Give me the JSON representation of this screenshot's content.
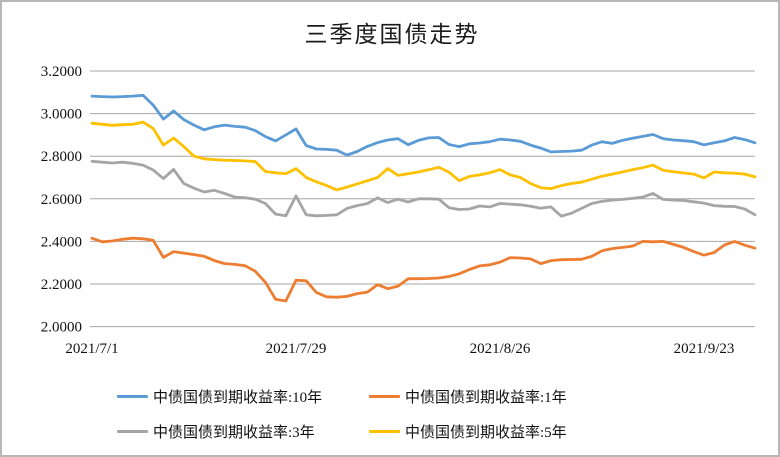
{
  "title": "三季度国债走势",
  "chart_data": {
    "type": "line",
    "title": "三季度国债走势",
    "xlabel": "",
    "ylabel": "",
    "ylim": [
      2.0,
      3.2
    ],
    "y_tick_step": 0.2,
    "y_ticks": [
      3.2,
      3.0,
      2.8,
      2.6,
      2.4,
      2.2,
      2.0
    ],
    "y_tick_labels": [
      "3.2000",
      "3.0000",
      "2.8000",
      "2.6000",
      "2.4000",
      "2.2000",
      "2.0000"
    ],
    "x_tick_labels": [
      "2021/7/1",
      "2021/7/29",
      "2021/8/26",
      "2021/9/23"
    ],
    "x_tick_indices": [
      0,
      20,
      40,
      60
    ],
    "num_points": 66,
    "grid": true,
    "legend_position": "bottom",
    "series": [
      {
        "name": "中债国债到期收益率:10年",
        "color": "#5B9BD5",
        "values": [
          3.082,
          3.08,
          3.078,
          3.08,
          3.082,
          3.086,
          3.04,
          2.974,
          3.012,
          2.972,
          2.946,
          2.924,
          2.938,
          2.946,
          2.94,
          2.936,
          2.92,
          2.892,
          2.872,
          2.9,
          2.928,
          2.85,
          2.834,
          2.832,
          2.828,
          2.805,
          2.822,
          2.846,
          2.864,
          2.876,
          2.882,
          2.854,
          2.874,
          2.886,
          2.888,
          2.855,
          2.845,
          2.858,
          2.862,
          2.868,
          2.88,
          2.876,
          2.87,
          2.852,
          2.838,
          2.82,
          2.822,
          2.824,
          2.828,
          2.852,
          2.868,
          2.86,
          2.874,
          2.884,
          2.893,
          2.902,
          2.882,
          2.876,
          2.873,
          2.868,
          2.853,
          2.863,
          2.872,
          2.888,
          2.878,
          2.863
        ]
      },
      {
        "name": "中债国债到期收益率:1年",
        "color": "#ED7D31",
        "values": [
          2.415,
          2.398,
          2.402,
          2.41,
          2.415,
          2.412,
          2.405,
          2.325,
          2.352,
          2.345,
          2.338,
          2.33,
          2.31,
          2.296,
          2.292,
          2.286,
          2.26,
          2.208,
          2.128,
          2.12,
          2.218,
          2.215,
          2.16,
          2.14,
          2.138,
          2.142,
          2.155,
          2.162,
          2.197,
          2.178,
          2.19,
          2.225,
          2.225,
          2.226,
          2.228,
          2.235,
          2.248,
          2.268,
          2.285,
          2.29,
          2.303,
          2.324,
          2.322,
          2.318,
          2.296,
          2.31,
          2.314,
          2.315,
          2.316,
          2.33,
          2.356,
          2.366,
          2.372,
          2.378,
          2.4,
          2.398,
          2.4,
          2.386,
          2.372,
          2.352,
          2.335,
          2.348,
          2.383,
          2.4,
          2.382,
          2.368
        ]
      },
      {
        "name": "中债国债到期收益率:3年",
        "color": "#A5A5A5",
        "values": [
          2.776,
          2.772,
          2.768,
          2.772,
          2.766,
          2.758,
          2.735,
          2.695,
          2.738,
          2.672,
          2.65,
          2.632,
          2.64,
          2.625,
          2.608,
          2.605,
          2.598,
          2.578,
          2.528,
          2.52,
          2.613,
          2.525,
          2.52,
          2.522,
          2.525,
          2.555,
          2.568,
          2.578,
          2.604,
          2.582,
          2.598,
          2.585,
          2.6,
          2.6,
          2.598,
          2.558,
          2.55,
          2.552,
          2.566,
          2.562,
          2.578,
          2.575,
          2.572,
          2.565,
          2.556,
          2.562,
          2.519,
          2.532,
          2.555,
          2.578,
          2.588,
          2.594,
          2.597,
          2.602,
          2.608,
          2.625,
          2.597,
          2.594,
          2.592,
          2.586,
          2.58,
          2.568,
          2.565,
          2.564,
          2.552,
          2.525
        ]
      },
      {
        "name": "中债国债到期收益率:5年",
        "color": "#FFC000",
        "values": [
          2.955,
          2.95,
          2.945,
          2.948,
          2.95,
          2.96,
          2.93,
          2.852,
          2.885,
          2.845,
          2.8,
          2.788,
          2.784,
          2.781,
          2.78,
          2.778,
          2.775,
          2.728,
          2.722,
          2.718,
          2.742,
          2.7,
          2.68,
          2.662,
          2.642,
          2.655,
          2.67,
          2.685,
          2.7,
          2.742,
          2.71,
          2.718,
          2.726,
          2.736,
          2.748,
          2.725,
          2.685,
          2.705,
          2.712,
          2.722,
          2.737,
          2.712,
          2.7,
          2.672,
          2.652,
          2.648,
          2.662,
          2.672,
          2.678,
          2.692,
          2.706,
          2.716,
          2.726,
          2.737,
          2.746,
          2.758,
          2.734,
          2.727,
          2.721,
          2.716,
          2.698,
          2.726,
          2.722,
          2.72,
          2.716,
          2.703
        ]
      }
    ]
  },
  "legend": [
    {
      "label": "中债国债到期收益率:10年",
      "color": "#5B9BD5"
    },
    {
      "label": "中债国债到期收益率:1年",
      "color": "#ED7D31"
    },
    {
      "label": "中债国债到期收益率:3年",
      "color": "#A5A5A5"
    },
    {
      "label": "中债国债到期收益率:5年",
      "color": "#FFC000"
    }
  ],
  "colors": {
    "gridline": "#a6a6a6",
    "text": "#111111",
    "background": "#ffffff",
    "border": "#b7b7b7"
  }
}
